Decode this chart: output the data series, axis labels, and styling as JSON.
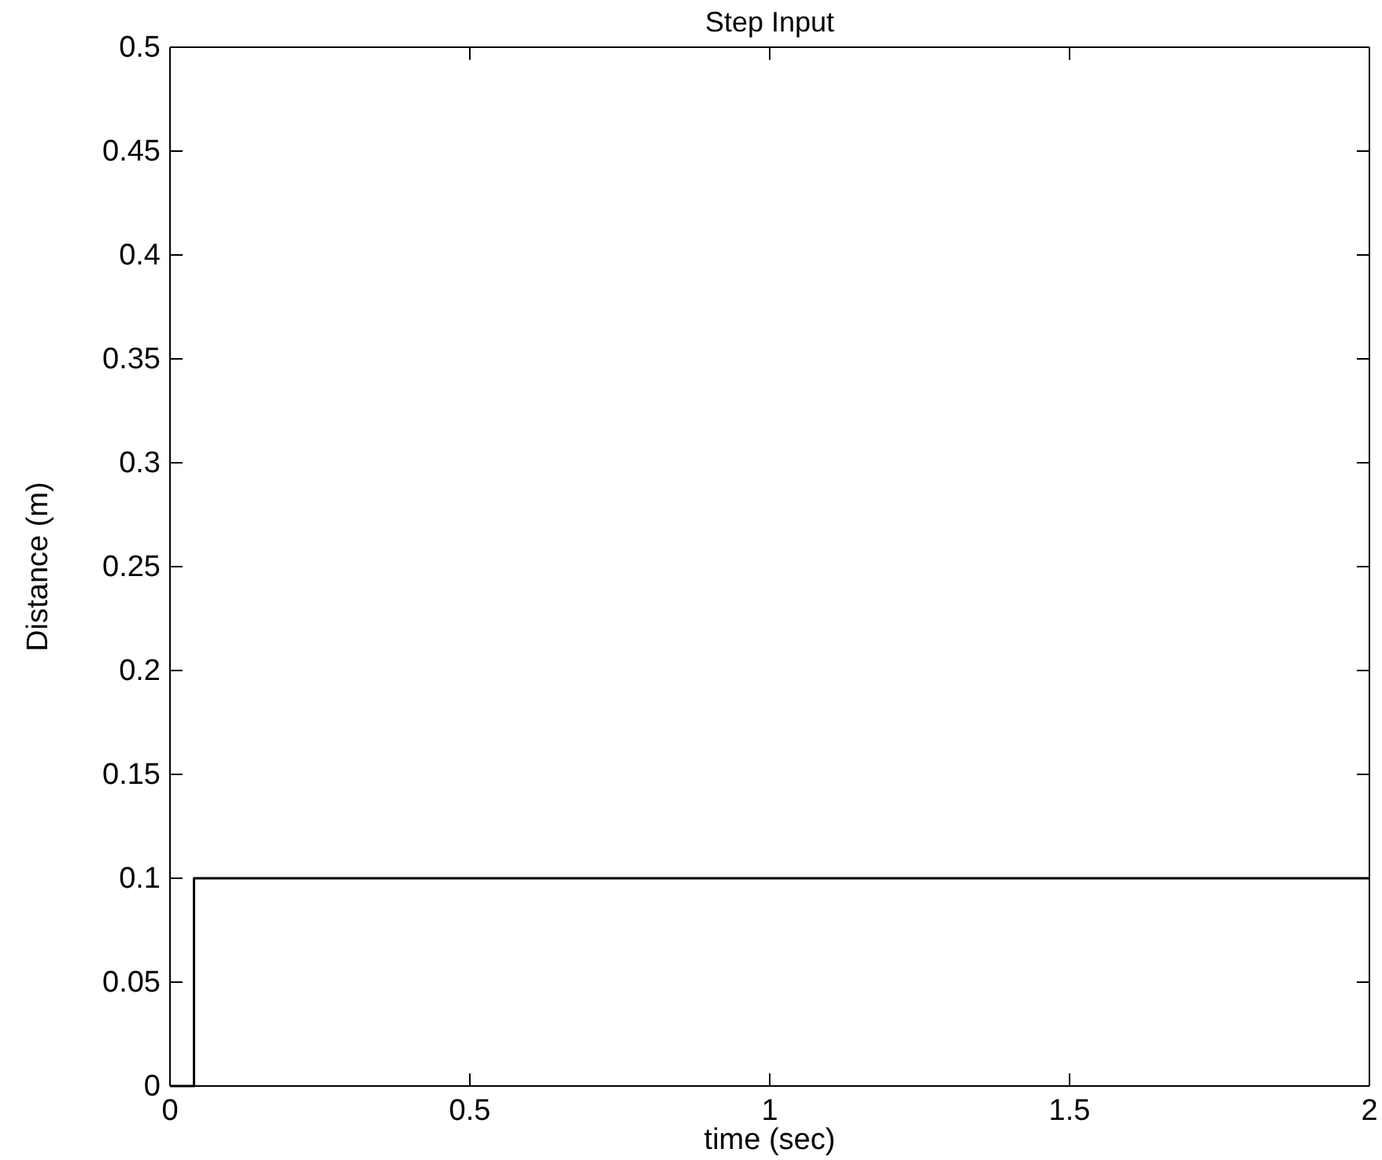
{
  "chart_data": {
    "type": "step",
    "title": "Step Input",
    "xlabel": "time (sec)",
    "ylabel": "Distance (m)",
    "x": [
      0,
      0.04,
      2
    ],
    "series": [
      {
        "color": "#000000",
        "values": [
          0,
          0.1,
          0.1
        ]
      }
    ],
    "xlim": [
      0,
      2
    ],
    "xticks": [
      0,
      0.5,
      1,
      1.5,
      2
    ],
    "ylim": [
      0,
      0.5
    ],
    "yticks": [
      0,
      0.05,
      0.1,
      0.15,
      0.2,
      0.25,
      0.3,
      0.35,
      0.4,
      0.45,
      0.5
    ],
    "grid": false
  }
}
